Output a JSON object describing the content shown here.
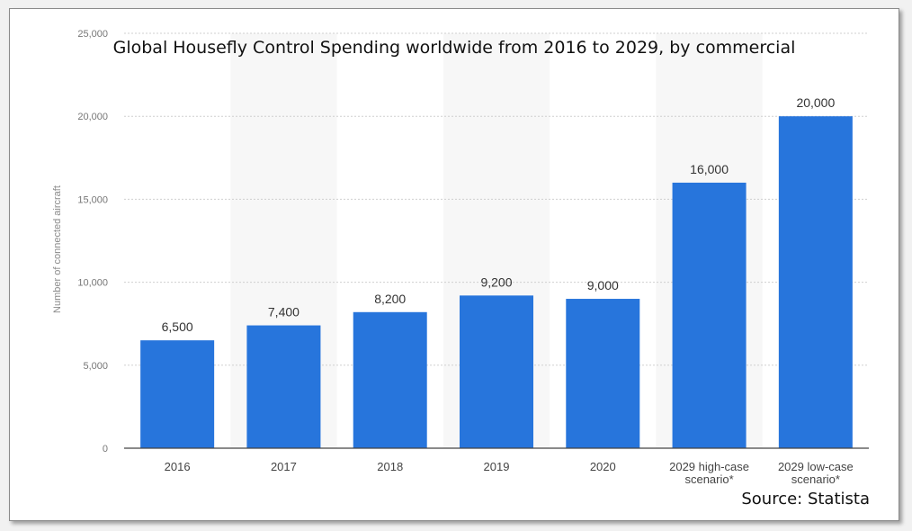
{
  "chart_data": {
    "type": "bar",
    "title": "Global Housefly Control Spending worldwide from 2016 to 2029, by commercial",
    "ylabel": "Number of connected aircraft",
    "xlabel": "",
    "categories": [
      "2016",
      "2017",
      "2018",
      "2019",
      "2020",
      "2029 high-case scenario*",
      "2029 low-case scenario*"
    ],
    "category_lines": [
      [
        "2016"
      ],
      [
        "2017"
      ],
      [
        "2018"
      ],
      [
        "2019"
      ],
      [
        "2020"
      ],
      [
        "2029 high-case",
        "scenario*"
      ],
      [
        "2029 low-case",
        "scenario*"
      ]
    ],
    "values": [
      6500,
      7400,
      8200,
      9200,
      9000,
      16000,
      20000
    ],
    "value_labels": [
      "6,500",
      "7,400",
      "8,200",
      "9,200",
      "9,000",
      "16,000",
      "20,000"
    ],
    "ylim": [
      0,
      25000
    ],
    "yticks": [
      0,
      5000,
      10000,
      15000,
      20000,
      25000
    ],
    "ytick_labels": [
      "0",
      "5,000",
      "10,000",
      "15,000",
      "20,000",
      "25,000"
    ],
    "grid": true,
    "bar_color": "#2775dc",
    "source": "Source: Statista"
  }
}
